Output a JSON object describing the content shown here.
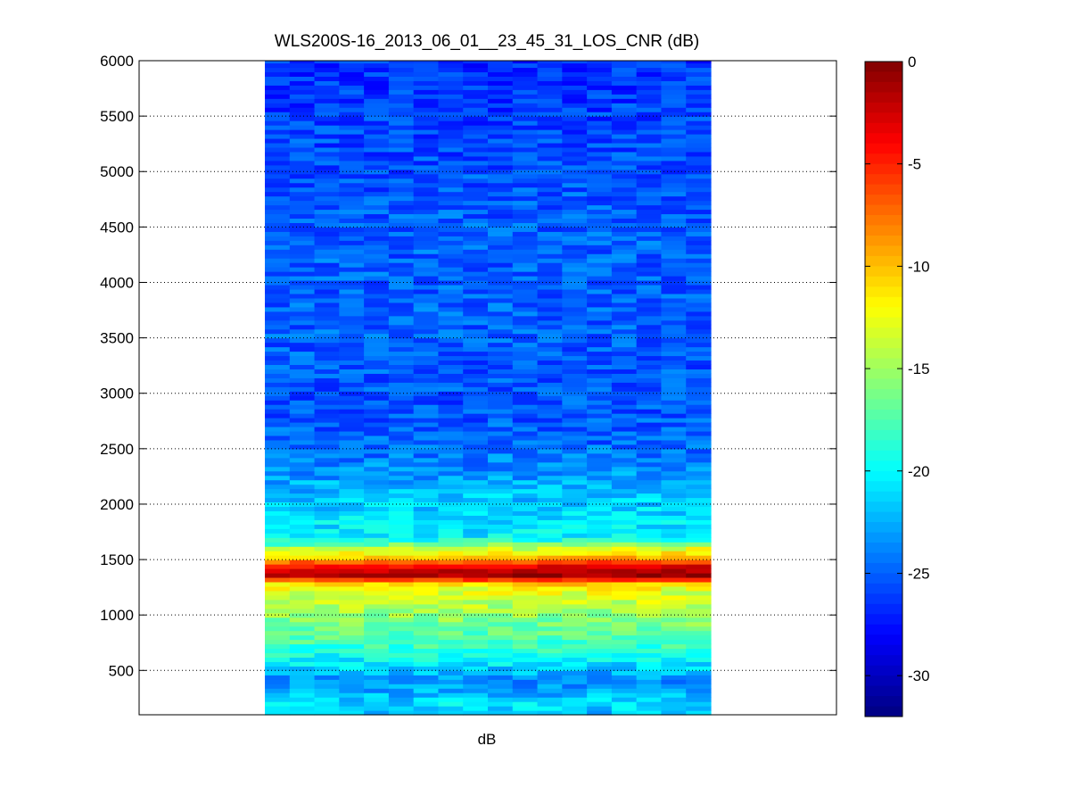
{
  "chart_data": {
    "type": "heatmap",
    "title": "WLS200S-16_2013_06_01__23_45_31_LOS_CNR (dB)",
    "xlabel": "dB",
    "ylabel": "",
    "ylim": [
      100,
      6000
    ],
    "yticks": [
      500,
      1000,
      1500,
      2000,
      2500,
      3000,
      3500,
      4000,
      4500,
      5000,
      5500,
      6000
    ],
    "grid": "y-dotted",
    "columns": 18,
    "colormap": "jet",
    "colorbar": {
      "range": [
        -32,
        0
      ],
      "ticks": [
        0,
        -5,
        -10,
        -15,
        -20,
        -25,
        -30
      ],
      "tick_labels": [
        "0",
        "-5",
        "-10",
        "-15",
        "-20",
        "-25",
        "-30"
      ]
    },
    "profile": [
      {
        "range": 6000,
        "cnr": -26.5
      },
      {
        "range": 5500,
        "cnr": -26
      },
      {
        "range": 5000,
        "cnr": -25.5
      },
      {
        "range": 4500,
        "cnr": -25
      },
      {
        "range": 4000,
        "cnr": -25
      },
      {
        "range": 3500,
        "cnr": -25
      },
      {
        "range": 3000,
        "cnr": -25.5
      },
      {
        "range": 2600,
        "cnr": -25
      },
      {
        "range": 2300,
        "cnr": -23.5
      },
      {
        "range": 2100,
        "cnr": -22
      },
      {
        "range": 1900,
        "cnr": -21
      },
      {
        "range": 1700,
        "cnr": -20.5
      },
      {
        "range": 1600,
        "cnr": -14
      },
      {
        "range": 1520,
        "cnr": -10
      },
      {
        "range": 1470,
        "cnr": -6
      },
      {
        "range": 1430,
        "cnr": -3
      },
      {
        "range": 1380,
        "cnr": -2
      },
      {
        "range": 1340,
        "cnr": -1
      },
      {
        "range": 1300,
        "cnr": -11
      },
      {
        "range": 1200,
        "cnr": -13
      },
      {
        "range": 1100,
        "cnr": -14
      },
      {
        "range": 1000,
        "cnr": -15.5
      },
      {
        "range": 900,
        "cnr": -16.5
      },
      {
        "range": 800,
        "cnr": -17.5
      },
      {
        "range": 700,
        "cnr": -18.5
      },
      {
        "range": 600,
        "cnr": -20
      },
      {
        "range": 500,
        "cnr": -22
      },
      {
        "range": 400,
        "cnr": -23.5
      },
      {
        "range": 300,
        "cnr": -22.5
      },
      {
        "range": 200,
        "cnr": -21
      },
      {
        "range": 100,
        "cnr": -22
      }
    ]
  }
}
